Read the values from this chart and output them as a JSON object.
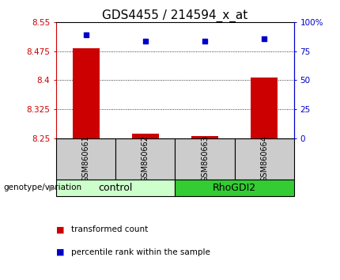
{
  "title": "GDS4455 / 214594_x_at",
  "samples": [
    "GSM860661",
    "GSM860662",
    "GSM860663",
    "GSM860664"
  ],
  "groups": [
    "control",
    "control",
    "RhoGDI2",
    "RhoGDI2"
  ],
  "bar_values": [
    8.482,
    8.262,
    8.255,
    8.408
  ],
  "percentile_values": [
    89,
    84,
    84,
    86
  ],
  "ylim_left": [
    8.25,
    8.55
  ],
  "ylim_right": [
    0,
    100
  ],
  "yticks_left": [
    8.25,
    8.325,
    8.4,
    8.475,
    8.55
  ],
  "ytick_labels_left": [
    "8.25",
    "8.325",
    "8.4",
    "8.475",
    "8.55"
  ],
  "yticks_right": [
    0,
    25,
    50,
    75,
    100
  ],
  "ytick_labels_right": [
    "0",
    "25",
    "50",
    "75",
    "100%"
  ],
  "bar_color": "#cc0000",
  "dot_color": "#0000cc",
  "grid_color": "#000000",
  "control_color": "#ccffcc",
  "rhodgi2_color": "#33cc33",
  "sample_box_color": "#cccccc",
  "title_fontsize": 11,
  "tick_fontsize": 7.5,
  "legend_fontsize": 7.5,
  "group_label_fontsize": 9,
  "sample_label_fontsize": 7,
  "bottom_label": "genotype/variation"
}
